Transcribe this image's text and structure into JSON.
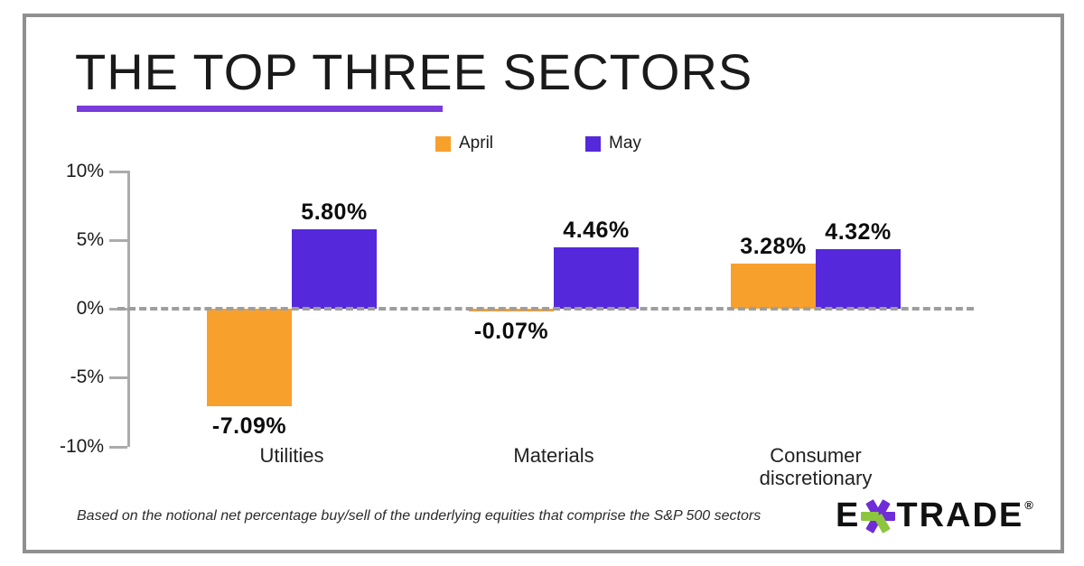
{
  "header": {
    "title": "THE TOP THREE SECTORS",
    "underline_color": "#7a3bdb"
  },
  "legend": {
    "items": [
      {
        "label": "April",
        "color": "#f8a02c"
      },
      {
        "label": "May",
        "color": "#5628db"
      }
    ]
  },
  "chart_data": {
    "type": "bar",
    "categories": [
      "Utilities",
      "Materials",
      "Consumer discretionary"
    ],
    "series": [
      {
        "name": "April",
        "color": "#f8a02c",
        "values": [
          -7.09,
          -0.07,
          3.28
        ],
        "labels": [
          "-7.09%",
          "-0.07%",
          "3.28%"
        ]
      },
      {
        "name": "May",
        "color": "#5628db",
        "values": [
          5.8,
          4.46,
          4.32
        ],
        "labels": [
          "5.80%",
          "4.46%",
          "4.32%"
        ]
      }
    ],
    "title": "THE TOP THREE SECTORS",
    "xlabel": "",
    "ylabel": "",
    "ylim": [
      -10,
      10
    ],
    "yticks": [
      {
        "value": 10,
        "label": "10%"
      },
      {
        "value": 5,
        "label": "5%"
      },
      {
        "value": 0,
        "label": "0%"
      },
      {
        "value": -5,
        "label": "-5%"
      },
      {
        "value": -10,
        "label": "-10%"
      }
    ],
    "zero_baseline": "dashed-gray",
    "grid": "off",
    "legend_position": "top-center"
  },
  "footnote": "Based on the notional net percentage buy/sell of the underlying equities that comprise the S&P 500 sectors",
  "logo": {
    "prefix": "E",
    "suffix": "TRADE",
    "reg_mark": "®",
    "star_purple": "#6f2dd8",
    "star_green": "#8cc63f"
  }
}
